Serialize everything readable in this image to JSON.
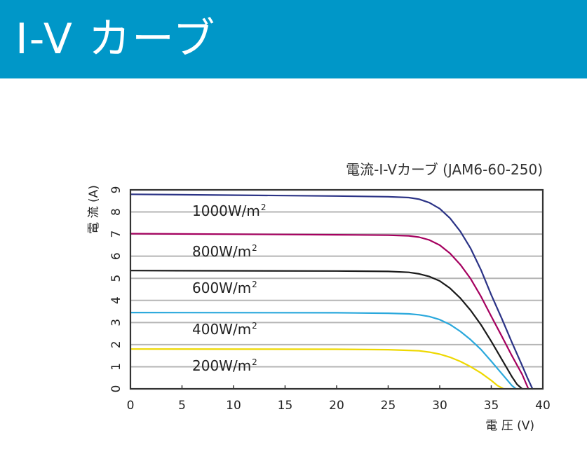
{
  "header": {
    "title": "I-V カーブ"
  },
  "chart_data": {
    "type": "line",
    "title": "電流-I-Vカーブ (JAM6-60-250)",
    "xlabel": "電 圧 (V)",
    "ylabel": "電 流 (A)",
    "xlim": [
      0,
      40
    ],
    "ylim": [
      0,
      9
    ],
    "xticks": [
      0,
      5,
      10,
      15,
      20,
      25,
      30,
      35,
      40
    ],
    "yticks": [
      0,
      1,
      2,
      3,
      4,
      5,
      6,
      7,
      8,
      9
    ],
    "grid": "horizontal",
    "series": [
      {
        "name": "1000W/m",
        "sup": "2",
        "color": "#2b3386",
        "x": [
          0,
          20,
          25,
          27,
          28,
          29,
          30,
          31,
          32,
          33,
          34,
          35,
          36,
          37,
          38,
          38.5,
          39
        ],
        "y": [
          8.8,
          8.72,
          8.69,
          8.65,
          8.58,
          8.42,
          8.15,
          7.72,
          7.12,
          6.35,
          5.38,
          4.25,
          3.2,
          2.1,
          1.05,
          0.5,
          0
        ]
      },
      {
        "name": "800W/m",
        "sup": "2",
        "color": "#a5005f",
        "x": [
          0,
          20,
          25,
          27,
          28,
          29,
          30,
          31,
          32,
          33,
          34,
          35,
          36,
          37,
          38,
          38.6
        ],
        "y": [
          7.02,
          6.97,
          6.95,
          6.92,
          6.86,
          6.73,
          6.5,
          6.13,
          5.62,
          4.98,
          4.18,
          3.28,
          2.4,
          1.5,
          0.65,
          0
        ]
      },
      {
        "name": "600W/m",
        "sup": "2",
        "color": "#1a1a1a",
        "x": [
          0,
          20,
          25,
          27,
          28,
          29,
          30,
          31,
          32,
          33,
          34,
          35,
          36,
          37,
          37.5,
          38
        ],
        "y": [
          5.35,
          5.33,
          5.31,
          5.27,
          5.2,
          5.08,
          4.88,
          4.55,
          4.1,
          3.55,
          2.9,
          2.15,
          1.35,
          0.55,
          0.2,
          0
        ]
      },
      {
        "name": "400W/m",
        "sup": "2",
        "color": "#2aa8dc",
        "x": [
          0,
          20,
          25,
          27,
          28,
          29,
          30,
          31,
          32,
          33,
          34,
          35,
          36,
          37,
          37.4
        ],
        "y": [
          3.45,
          3.44,
          3.42,
          3.39,
          3.35,
          3.27,
          3.13,
          2.91,
          2.6,
          2.22,
          1.78,
          1.25,
          0.7,
          0.15,
          0
        ]
      },
      {
        "name": "200W/m",
        "sup": "2",
        "color": "#eed800",
        "x": [
          0,
          20,
          25,
          27,
          28,
          29,
          30,
          31,
          32,
          33,
          34,
          35,
          35.6,
          36.2
        ],
        "y": [
          1.8,
          1.79,
          1.77,
          1.74,
          1.72,
          1.66,
          1.57,
          1.43,
          1.24,
          1.0,
          0.72,
          0.38,
          0.15,
          0
        ]
      }
    ]
  }
}
